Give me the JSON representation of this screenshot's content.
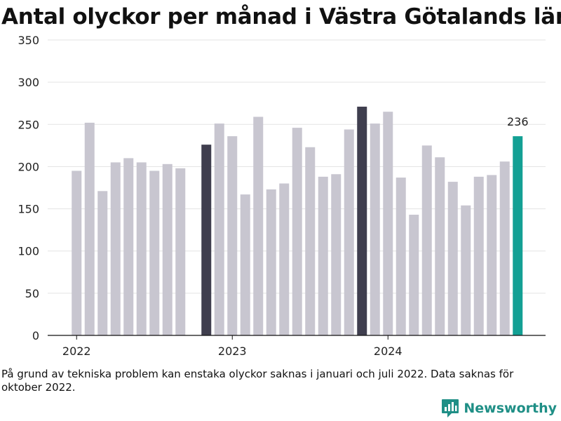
{
  "title": "Antal olyckor per månad i Västra Götalands län",
  "note": "På grund av tekniska problem kan enstaka olyckor saknas i januari och juli 2022. Data saknas för oktober 2022.",
  "brand": {
    "name": "Newsworthy",
    "logo_icon": "bar-chart-logo-icon",
    "color": "#1f8f86"
  },
  "chart_data": {
    "type": "bar",
    "title": "Antal olyckor per månad i Västra Götalands län",
    "xlabel": "",
    "ylabel": "",
    "ylim": [
      0,
      350
    ],
    "yticks": [
      0,
      50,
      100,
      150,
      200,
      250,
      300,
      350
    ],
    "xticks": [
      {
        "label": "2022",
        "x": "2022-01"
      },
      {
        "label": "2023",
        "x": "2023-01"
      },
      {
        "label": "2024",
        "x": "2024-01"
      }
    ],
    "grid": true,
    "colors": {
      "default": "#c8c6d0",
      "highlight": "#3f3e4e",
      "latest": "#13a094"
    },
    "x": [
      "2022-01",
      "2022-02",
      "2022-03",
      "2022-04",
      "2022-05",
      "2022-06",
      "2022-07",
      "2022-08",
      "2022-09",
      "2022-10",
      "2022-11",
      "2022-12",
      "2023-01",
      "2023-02",
      "2023-03",
      "2023-04",
      "2023-05",
      "2023-06",
      "2023-07",
      "2023-08",
      "2023-09",
      "2023-10",
      "2023-11",
      "2023-12",
      "2024-01",
      "2024-02",
      "2024-03",
      "2024-04",
      "2024-05",
      "2024-06",
      "2024-07",
      "2024-08",
      "2024-09",
      "2024-10",
      "2024-11"
    ],
    "values": [
      195,
      252,
      171,
      205,
      210,
      205,
      195,
      203,
      198,
      null,
      226,
      251,
      236,
      167,
      259,
      173,
      180,
      246,
      223,
      188,
      191,
      244,
      271,
      251,
      265,
      187,
      143,
      225,
      211,
      182,
      154,
      188,
      190,
      206,
      236
    ],
    "highlight": [
      "2022-11",
      "2023-11"
    ],
    "latest": "2024-11",
    "data_labels": [
      {
        "x": "2024-11",
        "text": "236"
      }
    ]
  }
}
